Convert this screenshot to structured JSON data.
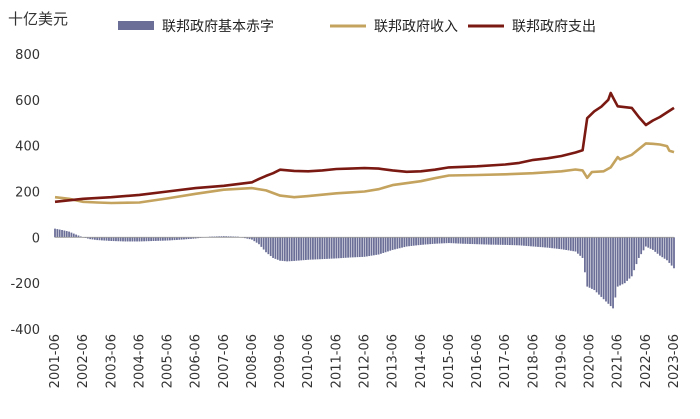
{
  "chart_data": {
    "type": "bar+line",
    "unit_label": "十亿美元",
    "ylim": [
      -400,
      800
    ],
    "yticks": [
      -400,
      -200,
      0,
      200,
      400,
      600,
      800
    ],
    "grid": false,
    "legend_position": "top",
    "x_tick_labels": [
      "2001-06",
      "2002-06",
      "2003-06",
      "2004-06",
      "2005-06",
      "2006-06",
      "2007-06",
      "2008-06",
      "2009-06",
      "2010-06",
      "2011-06",
      "2012-06",
      "2013-06",
      "2014-06",
      "2015-06",
      "2016-06",
      "2017-06",
      "2018-06",
      "2019-06",
      "2020-06",
      "2021-06",
      "2022-06",
      "2023-06"
    ],
    "series": [
      {
        "name": "联邦政府基本赤字",
        "kind": "bar",
        "color": "#6b6f97",
        "points": [
          [
            "2001-06",
            38
          ],
          [
            "2001-09",
            32
          ],
          [
            "2001-12",
            25
          ],
          [
            "2002-03",
            12
          ],
          [
            "2002-06",
            0
          ],
          [
            "2002-09",
            -8
          ],
          [
            "2002-12",
            -12
          ],
          [
            "2003-06",
            -16
          ],
          [
            "2003-12",
            -18
          ],
          [
            "2004-06",
            -18
          ],
          [
            "2004-12",
            -16
          ],
          [
            "2005-06",
            -14
          ],
          [
            "2005-12",
            -10
          ],
          [
            "2006-06",
            -5
          ],
          [
            "2006-12",
            3
          ],
          [
            "2007-06",
            5
          ],
          [
            "2007-12",
            3
          ],
          [
            "2008-06",
            -10
          ],
          [
            "2008-09",
            -30
          ],
          [
            "2008-12",
            -65
          ],
          [
            "2009-03",
            -90
          ],
          [
            "2009-06",
            -102
          ],
          [
            "2009-09",
            -105
          ],
          [
            "2009-12",
            -103
          ],
          [
            "2010-06",
            -98
          ],
          [
            "2010-12",
            -95
          ],
          [
            "2011-06",
            -92
          ],
          [
            "2011-12",
            -88
          ],
          [
            "2012-06",
            -85
          ],
          [
            "2012-12",
            -75
          ],
          [
            "2013-06",
            -55
          ],
          [
            "2013-12",
            -40
          ],
          [
            "2014-06",
            -33
          ],
          [
            "2014-12",
            -28
          ],
          [
            "2015-06",
            -25
          ],
          [
            "2015-12",
            -28
          ],
          [
            "2016-06",
            -30
          ],
          [
            "2016-12",
            -32
          ],
          [
            "2017-06",
            -33
          ],
          [
            "2017-12",
            -35
          ],
          [
            "2018-06",
            -40
          ],
          [
            "2018-12",
            -45
          ],
          [
            "2019-06",
            -52
          ],
          [
            "2019-12",
            -62
          ],
          [
            "2020-03",
            -90
          ],
          [
            "2020-05",
            -215
          ],
          [
            "2020-08",
            -230
          ],
          [
            "2020-11",
            -260
          ],
          [
            "2021-02",
            -290
          ],
          [
            "2021-04",
            -310
          ],
          [
            "2021-06",
            -215
          ],
          [
            "2021-09",
            -200
          ],
          [
            "2021-12",
            -170
          ],
          [
            "2022-03",
            -90
          ],
          [
            "2022-06",
            -40
          ],
          [
            "2022-09",
            -55
          ],
          [
            "2022-12",
            -80
          ],
          [
            "2023-03",
            -100
          ],
          [
            "2023-06",
            -135
          ]
        ]
      },
      {
        "name": "联邦政府收入",
        "kind": "line",
        "color": "#c4a35e",
        "points": [
          [
            "2001-06",
            175
          ],
          [
            "2001-12",
            168
          ],
          [
            "2002-06",
            155
          ],
          [
            "2002-12",
            152
          ],
          [
            "2003-06",
            150
          ],
          [
            "2004-06",
            152
          ],
          [
            "2005-06",
            170
          ],
          [
            "2006-06",
            190
          ],
          [
            "2007-06",
            208
          ],
          [
            "2008-06",
            215
          ],
          [
            "2008-12",
            205
          ],
          [
            "2009-06",
            182
          ],
          [
            "2009-12",
            175
          ],
          [
            "2010-06",
            180
          ],
          [
            "2010-12",
            186
          ],
          [
            "2011-06",
            192
          ],
          [
            "2011-12",
            196
          ],
          [
            "2012-06",
            200
          ],
          [
            "2012-12",
            210
          ],
          [
            "2013-06",
            228
          ],
          [
            "2014-06",
            245
          ],
          [
            "2014-12",
            258
          ],
          [
            "2015-06",
            270
          ],
          [
            "2016-06",
            272
          ],
          [
            "2017-06",
            275
          ],
          [
            "2018-06",
            280
          ],
          [
            "2019-06",
            288
          ],
          [
            "2019-12",
            296
          ],
          [
            "2020-03",
            292
          ],
          [
            "2020-05",
            260
          ],
          [
            "2020-07",
            285
          ],
          [
            "2020-12",
            288
          ],
          [
            "2021-03",
            305
          ],
          [
            "2021-06",
            350
          ],
          [
            "2021-07",
            340
          ],
          [
            "2021-12",
            360
          ],
          [
            "2022-03",
            385
          ],
          [
            "2022-06",
            410
          ],
          [
            "2022-09",
            408
          ],
          [
            "2022-12",
            405
          ],
          [
            "2023-03",
            398
          ],
          [
            "2023-04",
            378
          ],
          [
            "2023-06",
            372
          ]
        ]
      },
      {
        "name": "联邦政府支出",
        "kind": "line",
        "color": "#7a1912",
        "points": [
          [
            "2001-06",
            155
          ],
          [
            "2002-06",
            168
          ],
          [
            "2003-06",
            175
          ],
          [
            "2004-06",
            185
          ],
          [
            "2005-06",
            200
          ],
          [
            "2006-06",
            215
          ],
          [
            "2007-06",
            225
          ],
          [
            "2008-06",
            240
          ],
          [
            "2008-09",
            255
          ],
          [
            "2008-12",
            268
          ],
          [
            "2009-03",
            280
          ],
          [
            "2009-06",
            295
          ],
          [
            "2009-12",
            290
          ],
          [
            "2010-06",
            288
          ],
          [
            "2010-12",
            292
          ],
          [
            "2011-06",
            298
          ],
          [
            "2011-12",
            300
          ],
          [
            "2012-06",
            302
          ],
          [
            "2012-12",
            300
          ],
          [
            "2013-06",
            292
          ],
          [
            "2013-12",
            286
          ],
          [
            "2014-06",
            288
          ],
          [
            "2014-12",
            295
          ],
          [
            "2015-06",
            305
          ],
          [
            "2016-06",
            310
          ],
          [
            "2017-06",
            318
          ],
          [
            "2017-12",
            325
          ],
          [
            "2018-06",
            338
          ],
          [
            "2018-12",
            345
          ],
          [
            "2019-06",
            355
          ],
          [
            "2019-12",
            370
          ],
          [
            "2020-03",
            380
          ],
          [
            "2020-05",
            520
          ],
          [
            "2020-08",
            550
          ],
          [
            "2020-11",
            570
          ],
          [
            "2021-02",
            600
          ],
          [
            "2021-03",
            630
          ],
          [
            "2021-04",
            610
          ],
          [
            "2021-06",
            572
          ],
          [
            "2021-12",
            565
          ],
          [
            "2022-03",
            525
          ],
          [
            "2022-06",
            490
          ],
          [
            "2022-09",
            510
          ],
          [
            "2022-12",
            525
          ],
          [
            "2023-03",
            545
          ],
          [
            "2023-06",
            565
          ]
        ]
      }
    ]
  }
}
